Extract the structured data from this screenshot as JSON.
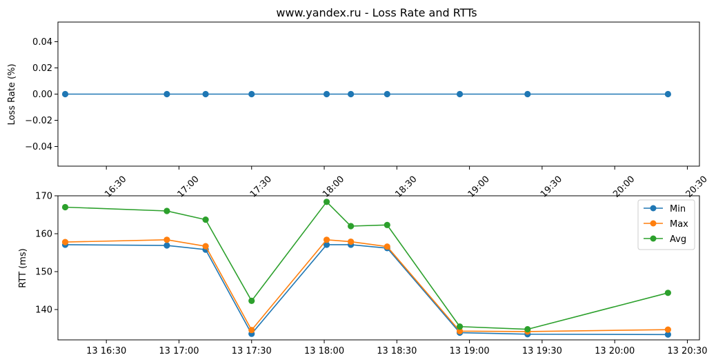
{
  "chart_data": [
    {
      "type": "line",
      "title": "www.yandex.ru - Loss Rate and RTTs",
      "ylabel": "Loss Rate (%)",
      "xlabel": "",
      "ylim": [
        -0.055,
        0.055
      ],
      "xlim": [
        "16:10",
        "20:35"
      ],
      "grid": false,
      "y_ticks": [
        "0.04",
        "0.02",
        "0.00",
        "−0.02",
        "−0.04"
      ],
      "y_tick_values": [
        0.04,
        0.02,
        0.0,
        -0.02,
        -0.04
      ],
      "x_ticks": [
        "16:30",
        "17:00",
        "17:30",
        "18:00",
        "18:30",
        "19:00",
        "19:30",
        "20:00",
        "20:30"
      ],
      "x_tick_values": [
        "16:30",
        "17:00",
        "17:30",
        "18:00",
        "18:30",
        "19:00",
        "19:30",
        "20:00",
        "20:30"
      ],
      "x": [
        "16:13",
        "16:55",
        "17:11",
        "17:30",
        "18:01",
        "18:11",
        "18:26",
        "18:56",
        "19:24",
        "20:22"
      ],
      "series": [
        {
          "values": [
            0,
            0,
            0,
            0,
            0,
            0,
            0,
            0,
            0,
            0
          ],
          "color": "#1f77b4"
        }
      ]
    },
    {
      "type": "line",
      "title": "",
      "ylabel": "RTT (ms)",
      "xlabel": "",
      "ylim": [
        132,
        170
      ],
      "xlim": [
        "16:10",
        "20:35"
      ],
      "grid": false,
      "legend": "top-right",
      "y_ticks": [
        "170",
        "160",
        "150",
        "140"
      ],
      "y_tick_values": [
        170,
        160,
        150,
        140
      ],
      "x_ticks": [
        "13 16:30",
        "13 17:00",
        "13 17:30",
        "13 18:00",
        "13 18:30",
        "13 19:00",
        "13 19:30",
        "13 20:00",
        "13 20:30"
      ],
      "x_tick_values": [
        "16:30",
        "17:00",
        "17:30",
        "18:00",
        "18:30",
        "19:00",
        "19:30",
        "20:00",
        "20:30"
      ],
      "x": [
        "16:13",
        "16:55",
        "17:11",
        "17:30",
        "18:01",
        "18:11",
        "18:26",
        "18:56",
        "19:24",
        "20:22"
      ],
      "series": [
        {
          "name": "Min",
          "color": "#1f77b4",
          "values": [
            157.1,
            156.9,
            155.8,
            133.6,
            157.1,
            157.1,
            156.2,
            133.9,
            133.5,
            133.4
          ]
        },
        {
          "name": "Max",
          "color": "#ff7f0e",
          "values": [
            157.8,
            158.4,
            156.7,
            134.6,
            158.4,
            157.9,
            156.6,
            134.3,
            134.2,
            134.7
          ]
        },
        {
          "name": "Avg",
          "color": "#2ca02c",
          "values": [
            167.0,
            166.0,
            163.7,
            142.3,
            168.4,
            162.0,
            162.3,
            135.5,
            134.8,
            144.4
          ]
        }
      ]
    }
  ]
}
